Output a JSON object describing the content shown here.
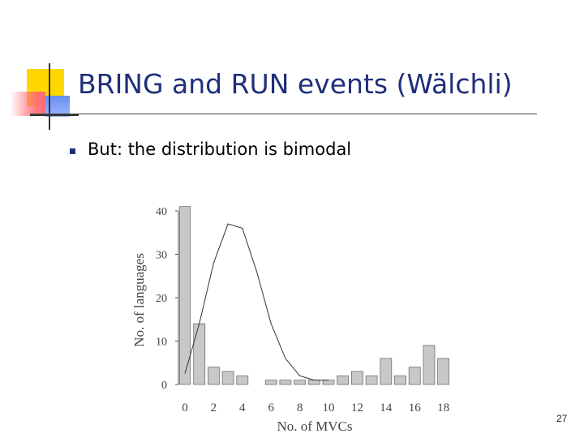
{
  "slide": {
    "title": "BRING and RUN events (Wälchli)",
    "bullet": "But: the distribution is bimodal",
    "page_number": "27"
  },
  "colors": {
    "title": "#1f2f7a",
    "bar_fill": "#c8c8c8",
    "bar_stroke": "#707070",
    "curve": "#333333"
  },
  "chart_data": {
    "type": "bar",
    "xlabel": "No. of MVCs",
    "ylabel": "No. of languages",
    "ylim": [
      0,
      40
    ],
    "yticks": [
      0,
      10,
      20,
      30,
      40
    ],
    "xticks": [
      0,
      2,
      4,
      6,
      8,
      10,
      12,
      14,
      16,
      18
    ],
    "grid": false,
    "x": [
      0,
      1,
      2,
      3,
      4,
      6,
      7,
      8,
      9,
      10,
      11,
      12,
      13,
      14,
      15,
      16,
      17,
      18
    ],
    "values": [
      41,
      14,
      4,
      3,
      2,
      1,
      1,
      1,
      1,
      1,
      2,
      3,
      2,
      6,
      2,
      4,
      9,
      6
    ],
    "curve": {
      "type": "line",
      "x": [
        0,
        1,
        2,
        3,
        4,
        5,
        6,
        7,
        8,
        9,
        10
      ],
      "values": [
        2.5,
        14,
        28,
        37,
        36,
        26,
        14,
        6,
        2,
        1,
        1
      ]
    }
  }
}
